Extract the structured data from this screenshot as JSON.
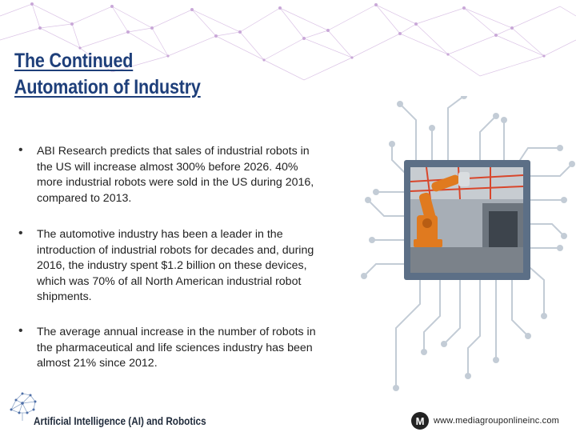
{
  "slide": {
    "title_line1": "The Continued",
    "title_line2": "Automation of Industry",
    "bullets": [
      {
        "text": "ABI Research predicts that sales of industrial robots in the US will increase almost 300% before 2026. 40% more industrial robots were sold in the US during 2016, compared to 2013."
      },
      {
        "text": "The automotive industry has been a leader in the introduction of industrial robots for decades and, during 2016, the industry spent $1.2 billion on these devices, which was 70% of all North American industrial robot shipments."
      },
      {
        "text": "The average annual increase in the number of robots in the pharmaceutical and life sciences industry has been almost 21% since 2012."
      }
    ],
    "bullet_glyph": "•"
  },
  "footer": {
    "left_label": "Artificial Intelligence (AI) and Robotics",
    "url": "www.mediagrouponlineinc.com",
    "logo_letter": "M"
  },
  "colors": {
    "title": "#1e3f7a",
    "network": "#c9a8d8",
    "circuit": "#b9c3cf",
    "chip": "#5c6f86"
  },
  "icons": {
    "brain": "brain-network-icon",
    "logo": "media-group-logo-icon"
  }
}
